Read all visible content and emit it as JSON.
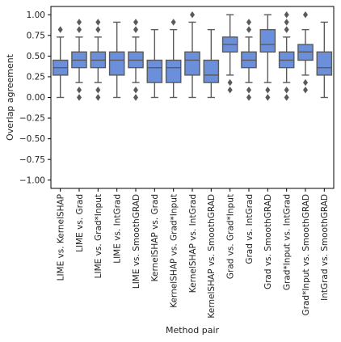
{
  "chart_data": {
    "type": "box",
    "title": "",
    "xlabel": "Method pair",
    "ylabel": "Overlap agreement",
    "ylim": [
      -1.1,
      1.1
    ],
    "yticks": [
      -1.0,
      -0.75,
      -0.5,
      -0.25,
      0.0,
      0.25,
      0.5,
      0.75,
      1.0
    ],
    "ytick_labels": [
      "−1.00",
      "−0.75",
      "−0.50",
      "−0.25",
      "0.00",
      "0.25",
      "0.50",
      "0.75",
      "1.00"
    ],
    "grid": false,
    "box_color": "#6b8fdb",
    "edge_color": "#5a5a5a",
    "categories": [
      "LIME vs. KernelSHAP",
      "LIME vs. Grad",
      "LIME vs. Grad*Input",
      "LIME vs. IntGrad",
      "LIME vs. SmoothGRAD",
      "KernelSHAP vs. Grad",
      "KernelSHAP vs. Grad*Input",
      "KernelSHAP vs. IntGrad",
      "KernelSHAP vs. SmoothGRAD",
      "Grad vs. Grad*Input",
      "Grad vs. IntGrad",
      "Grad vs. SmoothGRAD",
      "Grad*Input vs. IntGrad",
      "Grad*Input vs. SmoothGRAD",
      "IntGrad vs. SmoothGRAD"
    ],
    "boxes": [
      {
        "whislo": 0.0,
        "q1": 0.27,
        "med": 0.36,
        "q3": 0.45,
        "whishi": 0.73,
        "fliers": [
          0.82
        ]
      },
      {
        "whislo": 0.18,
        "q1": 0.36,
        "med": 0.45,
        "q3": 0.55,
        "whishi": 0.73,
        "fliers": [
          0.0,
          0.09,
          0.82,
          0.91
        ]
      },
      {
        "whislo": 0.18,
        "q1": 0.36,
        "med": 0.45,
        "q3": 0.55,
        "whishi": 0.73,
        "fliers": [
          0.0,
          0.09,
          0.82,
          0.91
        ]
      },
      {
        "whislo": 0.0,
        "q1": 0.27,
        "med": 0.45,
        "q3": 0.55,
        "whishi": 0.91,
        "fliers": []
      },
      {
        "whislo": 0.18,
        "q1": 0.36,
        "med": 0.45,
        "q3": 0.55,
        "whishi": 0.73,
        "fliers": [
          0.0,
          0.09,
          0.82,
          0.91
        ]
      },
      {
        "whislo": 0.0,
        "q1": 0.18,
        "med": 0.36,
        "q3": 0.45,
        "whishi": 0.82,
        "fliers": []
      },
      {
        "whislo": 0.0,
        "q1": 0.18,
        "med": 0.36,
        "q3": 0.45,
        "whishi": 0.82,
        "fliers": [
          0.91
        ]
      },
      {
        "whislo": 0.0,
        "q1": 0.27,
        "med": 0.45,
        "q3": 0.55,
        "whishi": 0.91,
        "fliers": [
          1.0
        ]
      },
      {
        "whislo": 0.0,
        "q1": 0.18,
        "med": 0.27,
        "q3": 0.45,
        "whishi": 0.82,
        "fliers": []
      },
      {
        "whislo": 0.27,
        "q1": 0.55,
        "med": 0.64,
        "q3": 0.73,
        "whishi": 1.0,
        "fliers": [
          0.09,
          0.18
        ]
      },
      {
        "whislo": 0.18,
        "q1": 0.36,
        "med": 0.45,
        "q3": 0.55,
        "whishi": 0.73,
        "fliers": [
          0.0,
          0.09,
          0.82,
          0.91
        ]
      },
      {
        "whislo": 0.18,
        "q1": 0.55,
        "med": 0.64,
        "q3": 0.82,
        "whishi": 1.0,
        "fliers": [
          0.0,
          0.09
        ]
      },
      {
        "whislo": 0.18,
        "q1": 0.36,
        "med": 0.45,
        "q3": 0.55,
        "whishi": 0.73,
        "fliers": [
          0.0,
          0.09,
          0.82,
          0.91,
          1.0
        ]
      },
      {
        "whislo": 0.27,
        "q1": 0.45,
        "med": 0.55,
        "q3": 0.64,
        "whishi": 0.82,
        "fliers": [
          0.09,
          0.18,
          1.0
        ]
      },
      {
        "whislo": 0.0,
        "q1": 0.27,
        "med": 0.36,
        "q3": 0.55,
        "whishi": 0.91,
        "fliers": []
      }
    ]
  }
}
